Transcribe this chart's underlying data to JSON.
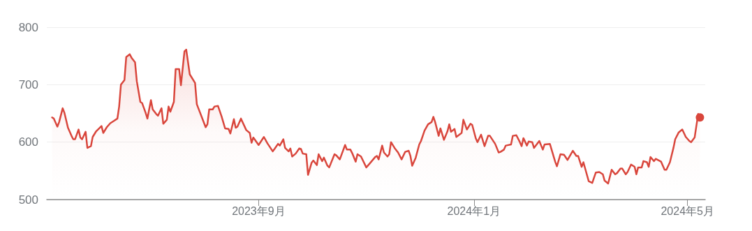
{
  "chart_data": {
    "type": "area",
    "color": "#d9463c",
    "marker": "none",
    "grid": "y",
    "xlim": [
      "2023-05-04",
      "2024-05-11"
    ],
    "xticks": [
      {
        "value": "2023-09",
        "label": "2023年9月"
      },
      {
        "value": "2024-01",
        "label": "2024年1月"
      },
      {
        "value": "2024-05",
        "label": "2024年5月"
      }
    ],
    "ylim": [
      500,
      800
    ],
    "yticks": [
      500,
      600,
      700,
      800
    ],
    "x": [
      "2023-05-07",
      "2023-05-08",
      "2023-05-10",
      "2023-05-11",
      "2023-05-13",
      "2023-05-14",
      "2023-05-16",
      "2023-05-18",
      "2023-05-19",
      "2023-05-20",
      "2023-05-22",
      "2023-05-23",
      "2023-05-24",
      "2023-05-26",
      "2023-05-27",
      "2023-05-29",
      "2023-05-30",
      "2023-06-01",
      "2023-06-04",
      "2023-06-05",
      "2023-06-07",
      "2023-06-09",
      "2023-06-11",
      "2023-06-13",
      "2023-06-14",
      "2023-06-15",
      "2023-06-17",
      "2023-06-18",
      "2023-06-20",
      "2023-06-21",
      "2023-06-23",
      "2023-06-24",
      "2023-06-26",
      "2023-06-27",
      "2023-06-29",
      "2023-06-30",
      "2023-07-02",
      "2023-07-03",
      "2023-07-05",
      "2023-07-06",
      "2023-07-08",
      "2023-07-09",
      "2023-07-11",
      "2023-07-12",
      "2023-07-13",
      "2023-07-15",
      "2023-07-16",
      "2023-07-18",
      "2023-07-19",
      "2023-07-21",
      "2023-07-22",
      "2023-07-24",
      "2023-07-27",
      "2023-07-28",
      "2023-08-02",
      "2023-08-03",
      "2023-08-04",
      "2023-08-06",
      "2023-08-07",
      "2023-08-09",
      "2023-08-11",
      "2023-08-13",
      "2023-08-15",
      "2023-08-16",
      "2023-08-18",
      "2023-08-19",
      "2023-08-20",
      "2023-08-22",
      "2023-08-25",
      "2023-08-27",
      "2023-08-28",
      "2023-08-29",
      "2023-09-01",
      "2023-09-04",
      "2023-09-06",
      "2023-09-09",
      "2023-09-10",
      "2023-09-12",
      "2023-09-13",
      "2023-09-15",
      "2023-09-16",
      "2023-09-18",
      "2023-09-19",
      "2023-09-20",
      "2023-09-22",
      "2023-09-24",
      "2023-09-25",
      "2023-09-26",
      "2023-09-28",
      "2023-09-29",
      "2023-10-01",
      "2023-10-02",
      "2023-10-04",
      "2023-10-05",
      "2023-10-07",
      "2023-10-08",
      "2023-10-10",
      "2023-10-11",
      "2023-10-14",
      "2023-10-15",
      "2023-10-17",
      "2023-10-20",
      "2023-10-21",
      "2023-10-23",
      "2023-10-24",
      "2023-10-26",
      "2023-10-27",
      "2023-10-29",
      "2023-11-01",
      "2023-11-03",
      "2023-11-06",
      "2023-11-07",
      "2023-11-08",
      "2023-11-10",
      "2023-11-11",
      "2023-11-13",
      "2023-11-14",
      "2023-11-15",
      "2023-11-17",
      "2023-11-19",
      "2023-11-21",
      "2023-11-23",
      "2023-11-25",
      "2023-11-26",
      "2023-11-27",
      "2023-11-29",
      "2023-12-01",
      "2023-12-02",
      "2023-12-04",
      "2023-12-06",
      "2023-12-08",
      "2023-12-09",
      "2023-12-10",
      "2023-12-12",
      "2023-12-13",
      "2023-12-15",
      "2023-12-17",
      "2023-12-18",
      "2023-12-19",
      "2023-12-21",
      "2023-12-22",
      "2023-12-25",
      "2023-12-26",
      "2023-12-28",
      "2023-12-30",
      "2023-12-31",
      "2024-01-02",
      "2024-01-03",
      "2024-01-05",
      "2024-01-07",
      "2024-01-09",
      "2024-01-10",
      "2024-01-13",
      "2024-01-15",
      "2024-01-16",
      "2024-01-18",
      "2024-01-19",
      "2024-01-22",
      "2024-01-23",
      "2024-01-25",
      "2024-01-27",
      "2024-01-28",
      "2024-01-29",
      "2024-01-31",
      "2024-02-01",
      "2024-02-03",
      "2024-02-04",
      "2024-02-07",
      "2024-02-09",
      "2024-02-10",
      "2024-02-13",
      "2024-02-16",
      "2024-02-17",
      "2024-02-19",
      "2024-02-21",
      "2024-02-23",
      "2024-02-26",
      "2024-02-28",
      "2024-02-29",
      "2024-03-02",
      "2024-03-03",
      "2024-03-06",
      "2024-03-08",
      "2024-03-10",
      "2024-03-12",
      "2024-03-14",
      "2024-03-15",
      "2024-03-17",
      "2024-03-18",
      "2024-03-19",
      "2024-03-21",
      "2024-03-22",
      "2024-03-24",
      "2024-03-25",
      "2024-03-27",
      "2024-03-28",
      "2024-03-30",
      "2024-04-01",
      "2024-04-02",
      "2024-04-03",
      "2024-04-05",
      "2024-04-06",
      "2024-04-08",
      "2024-04-09",
      "2024-04-10",
      "2024-04-12",
      "2024-04-13",
      "2024-04-16",
      "2024-04-18",
      "2024-04-19",
      "2024-04-21",
      "2024-04-23",
      "2024-04-24",
      "2024-04-26",
      "2024-04-28",
      "2024-04-30",
      "2024-05-02",
      "2024-05-03",
      "2024-05-05",
      "2024-05-07",
      "2024-05-08"
    ],
    "values": [
      643,
      641,
      627,
      635,
      659,
      651,
      625,
      611,
      605,
      605,
      622,
      608,
      605,
      618,
      590,
      593,
      609,
      619,
      628,
      616,
      626,
      633,
      637,
      641,
      662,
      700,
      708,
      748,
      753,
      747,
      739,
      706,
      670,
      668,
      651,
      641,
      673,
      657,
      649,
      646,
      659,
      632,
      639,
      662,
      653,
      670,
      727,
      727,
      699,
      758,
      761,
      718,
      703,
      666,
      626,
      631,
      657,
      657,
      662,
      663,
      645,
      624,
      623,
      615,
      640,
      625,
      627,
      641,
      621,
      616,
      599,
      608,
      595,
      609,
      598,
      584,
      588,
      597,
      594,
      605,
      590,
      584,
      589,
      575,
      580,
      589,
      588,
      580,
      579,
      543,
      564,
      568,
      560,
      579,
      567,
      573,
      559,
      556,
      579,
      577,
      570,
      595,
      587,
      587,
      581,
      566,
      579,
      575,
      556,
      563,
      574,
      576,
      570,
      594,
      582,
      575,
      579,
      600,
      590,
      582,
      570,
      583,
      585,
      576,
      559,
      573,
      596,
      602,
      620,
      631,
      635,
      644,
      635,
      611,
      624,
      604,
      619,
      631,
      618,
      623,
      609,
      616,
      639,
      622,
      632,
      630,
      607,
      600,
      613,
      593,
      611,
      611,
      597,
      582,
      583,
      587,
      594,
      596,
      611,
      612,
      600,
      593,
      607,
      594,
      601,
      600,
      590,
      602,
      587,
      596,
      597,
      566,
      558,
      579,
      578,
      569,
      585,
      576,
      576,
      557,
      565,
      532,
      529,
      547,
      548,
      544,
      533,
      528,
      540,
      552,
      544,
      546,
      554,
      554,
      544,
      548,
      561,
      557,
      544,
      556,
      556,
      567,
      565,
      557,
      574,
      567,
      571,
      566,
      552,
      552,
      565,
      590,
      605,
      617,
      622,
      609,
      602,
      600,
      608,
      649,
      643
    ]
  }
}
